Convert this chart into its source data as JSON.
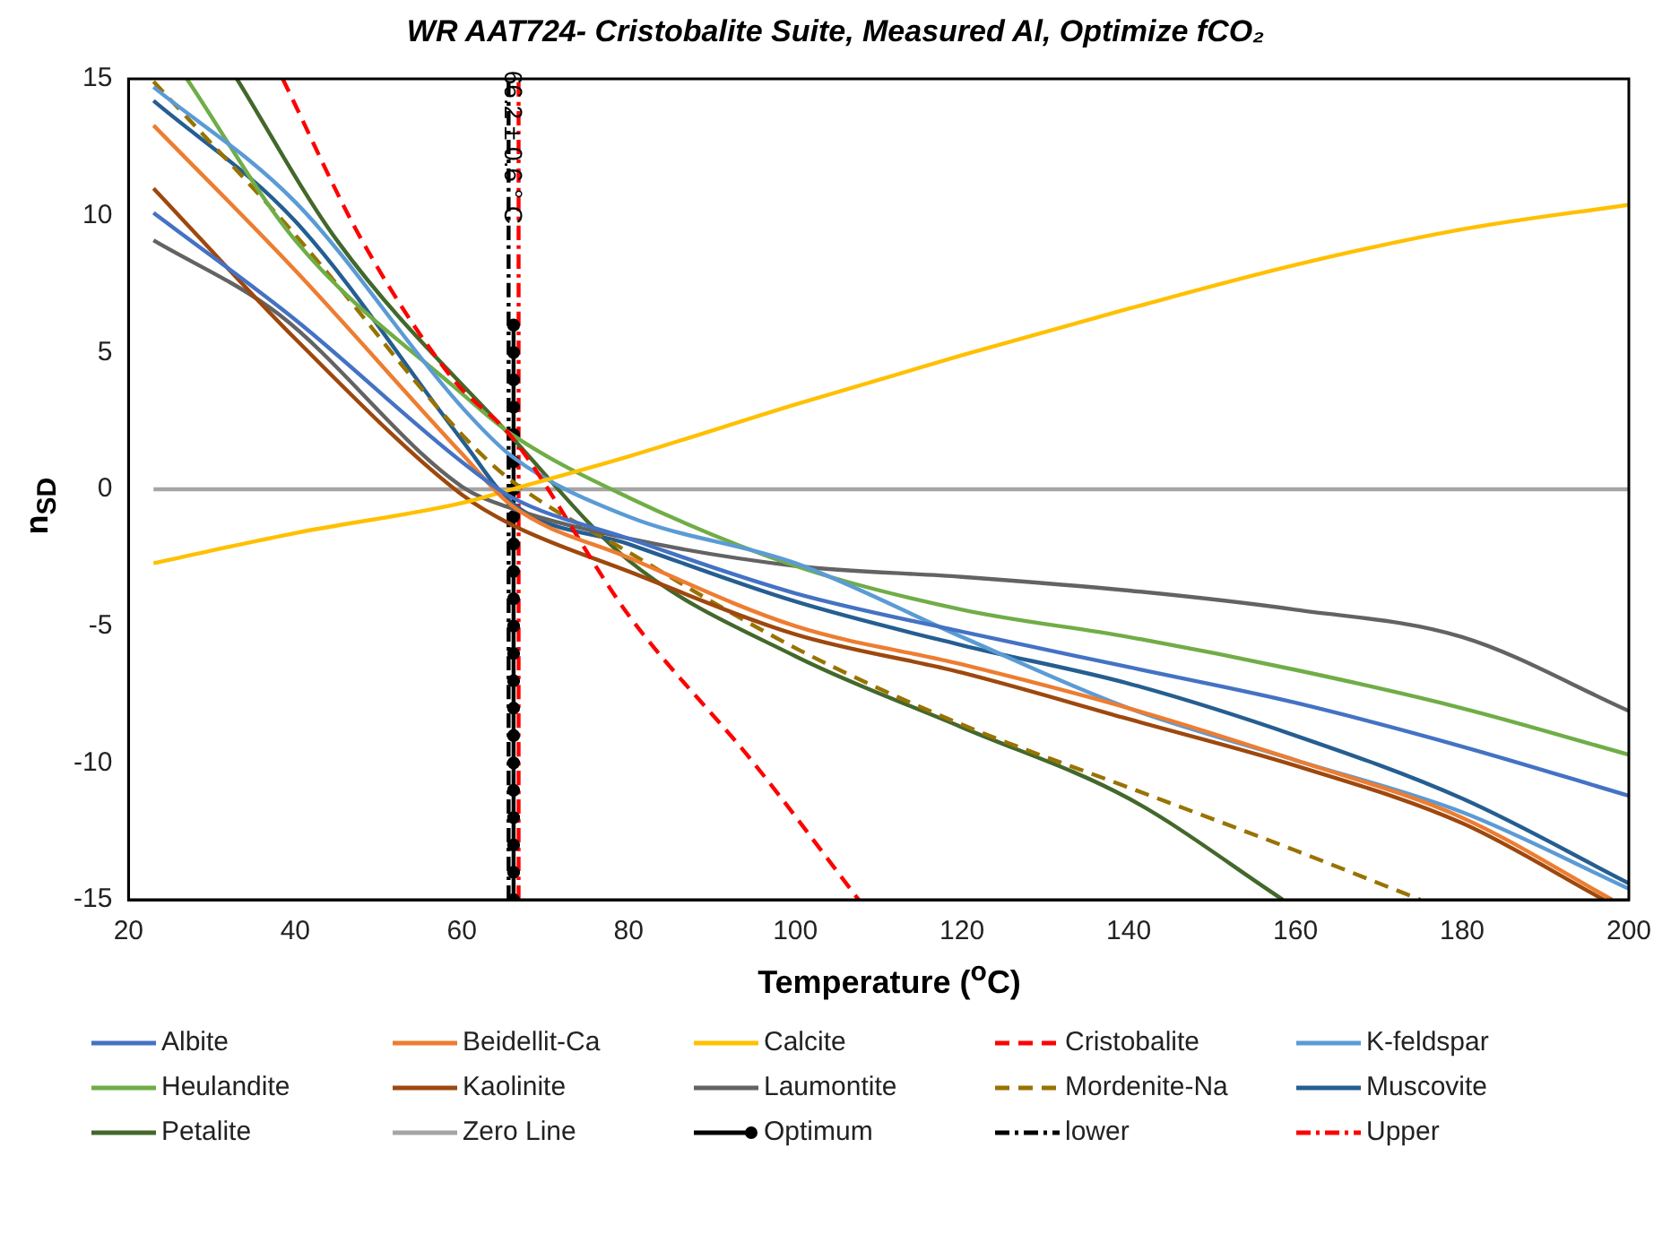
{
  "chart_data": {
    "type": "line",
    "title": "WR AAT724- Cristobalite Suite, Measured Al, Optimize fCO₂",
    "xlabel": "Temperature ($^{o}$C)",
    "ylabel": "n$_{SD}$",
    "xlim": [
      20,
      200
    ],
    "xticks": [
      20,
      40,
      60,
      80,
      100,
      120,
      140,
      160,
      180,
      200
    ],
    "ylim": [
      -15,
      15
    ],
    "yticks": [
      -15,
      -10,
      -5,
      0,
      5,
      10,
      15
    ],
    "grid": false,
    "legend": "bottom",
    "marker": "none",
    "line_style": "solid",
    "annotations": [
      {
        "text": "66.2 ± 0.6 ° C",
        "x": 66.2,
        "y": 12.5
      }
    ],
    "series": [
      {
        "name": "Albite",
        "color": "#4472c4",
        "x": [
          23,
          40,
          60,
          66,
          80,
          100,
          120,
          140,
          160,
          180,
          200
        ],
        "values": [
          10.1,
          6.2,
          1.0,
          -0.3,
          -1.8,
          -3.8,
          -5.2,
          -6.5,
          -7.8,
          -9.4,
          -11.2
        ]
      },
      {
        "name": "Beidellit-Ca",
        "color": "#ed7d31",
        "x": [
          23,
          40,
          60,
          66,
          80,
          100,
          120,
          140,
          160,
          180,
          198
        ],
        "values": [
          13.3,
          8.0,
          1.3,
          -0.6,
          -2.5,
          -5.0,
          -6.4,
          -8.0,
          -9.9,
          -12.0,
          -15
        ]
      },
      {
        "name": "Calcite",
        "color": "#ffc000",
        "x": [
          23,
          40,
          60,
          66,
          80,
          100,
          120,
          140,
          160,
          180,
          200
        ],
        "values": [
          -2.7,
          -1.6,
          -0.5,
          0,
          1.2,
          3.1,
          4.9,
          6.6,
          8.2,
          9.5,
          10.4
        ]
      },
      {
        "name": "Cristobalite",
        "color": "#ff0000",
        "line_style": "dashed",
        "x": [
          38.5,
          48,
          59,
          66,
          80,
          95,
          107.6
        ],
        "values": [
          15,
          9.1,
          4.0,
          1.9,
          -4.6,
          -10,
          -15
        ]
      },
      {
        "name": "K-feldspar",
        "color": "#5b9bd5",
        "x": [
          23,
          40,
          60,
          66,
          80,
          100,
          120,
          140,
          160,
          180,
          200
        ],
        "values": [
          14.7,
          10.5,
          3.0,
          1.2,
          -1.0,
          -2.7,
          -5.4,
          -8.0,
          -9.9,
          -11.8,
          -14.6
        ]
      },
      {
        "name": "Heulandite",
        "color": "#70ad47",
        "x": [
          27,
          40,
          60,
          66,
          80,
          100,
          120,
          140,
          160,
          180,
          200
        ],
        "values": [
          15,
          9.1,
          3.5,
          2.0,
          -0.3,
          -2.8,
          -4.4,
          -5.4,
          -6.6,
          -8.0,
          -9.7
        ]
      },
      {
        "name": "Kaolinite",
        "color": "#9e480e",
        "x": [
          23,
          40,
          60,
          66,
          80,
          100,
          120,
          140,
          160,
          180,
          197
        ],
        "values": [
          11.0,
          5.5,
          -0.2,
          -1.3,
          -3.0,
          -5.3,
          -6.7,
          -8.4,
          -10.1,
          -12.2,
          -15
        ]
      },
      {
        "name": "Laumontite",
        "color": "#636363",
        "x": [
          23,
          38,
          60,
          66,
          80,
          100,
          120,
          140,
          160,
          180,
          200
        ],
        "values": [
          9.1,
          6.4,
          0.1,
          -0.7,
          -1.8,
          -2.8,
          -3.2,
          -3.7,
          -4.4,
          -5.4,
          -8.1
        ]
      },
      {
        "name": "Mordenite-Na",
        "color": "#997300",
        "line_style": "dashed",
        "x": [
          23,
          40,
          60,
          66,
          80,
          100,
          120,
          140,
          160,
          175
        ],
        "values": [
          14.9,
          9.3,
          2.0,
          0.3,
          -2.3,
          -5.8,
          -8.6,
          -10.9,
          -13.2,
          -15
        ]
      },
      {
        "name": "Muscovite",
        "color": "#255e91",
        "x": [
          23,
          40,
          60,
          66,
          80,
          100,
          120,
          140,
          160,
          180,
          200
        ],
        "values": [
          14.2,
          9.8,
          1.8,
          -0.5,
          -2.0,
          -4.1,
          -5.7,
          -7.1,
          -9.0,
          -11.3,
          -14.4
        ]
      },
      {
        "name": "Petalite",
        "color": "#43682b",
        "x": [
          33,
          45,
          66,
          80,
          100,
          120,
          140,
          158.5
        ],
        "values": [
          15,
          9.1,
          1.9,
          -2.6,
          -6.1,
          -8.7,
          -11.3,
          -15
        ]
      },
      {
        "name": "Zero Line",
        "color": "#a5a5a5",
        "x": [
          23,
          200
        ],
        "values": [
          0,
          0
        ]
      },
      {
        "name": "Optimum",
        "color": "#000000",
        "marker": "circle",
        "x": [
          66.2,
          66.2,
          66.2,
          66.2,
          66.2,
          66.2,
          66.2,
          66.2,
          66.2,
          66.2,
          66.2,
          66.2,
          66.2,
          66.2,
          66.2,
          66.2,
          66.2,
          66.2,
          66.2,
          66.2,
          66.2,
          66.2
        ],
        "values": [
          -15,
          -14,
          -13,
          -12,
          -11,
          -10,
          -9,
          -8,
          -7,
          -6,
          -5,
          -4,
          -3,
          -2,
          -1,
          0,
          1,
          2,
          3,
          4,
          5,
          6
        ]
      },
      {
        "name": "lower",
        "color": "#000000",
        "line_style": "dashdot",
        "x": [
          65.6,
          65.6
        ],
        "values": [
          -15,
          15
        ]
      },
      {
        "name": "Upper",
        "color": "#ff0000",
        "line_style": "dashdot",
        "x": [
          66.8,
          66.8
        ],
        "values": [
          -15,
          15
        ]
      }
    ]
  }
}
